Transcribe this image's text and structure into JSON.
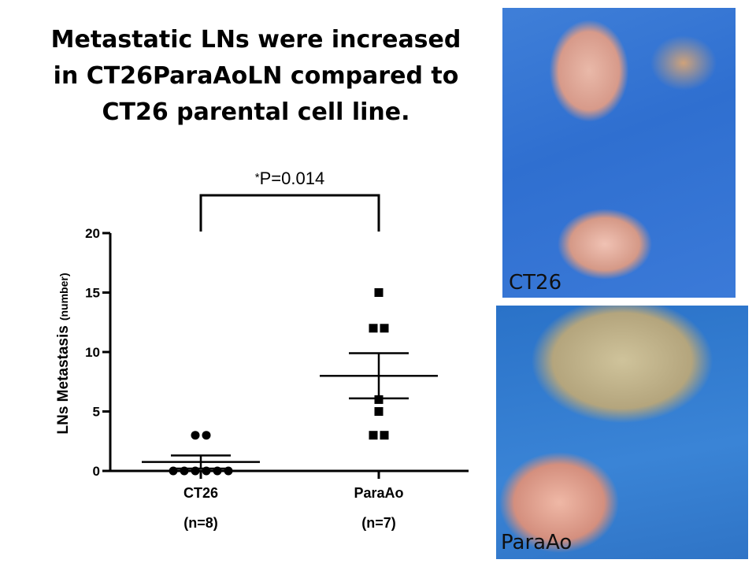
{
  "slide": {
    "title_lines": [
      "Metastatic LNs were increased",
      "in CT26ParaAoLN compared to",
      "CT26 parental cell line."
    ]
  },
  "photos": [
    {
      "label": "CT26",
      "icon": "ct26-intestine-photo"
    },
    {
      "label": "ParaAo",
      "icon": "paraao-intestine-photo"
    }
  ],
  "chart_data": {
    "type": "scatter",
    "title": "",
    "ylabel": "LNs Metastasis",
    "ylabel_unit": "(number)",
    "ylim": [
      0,
      20
    ],
    "yticks": [
      0,
      5,
      10,
      15,
      20
    ],
    "grid": false,
    "categories": [
      "CT26",
      "ParaAo"
    ],
    "category_sublabels": [
      "(n=8)",
      "(n=7)"
    ],
    "series": [
      {
        "values": [
          0,
          0,
          0,
          0,
          0,
          0,
          3,
          3
        ],
        "marker": "circle",
        "mean": 0.75,
        "sem_upper": 1.3,
        "sem_lower": 0.2
      },
      {
        "values": [
          15,
          12,
          12,
          6,
          5,
          3,
          3
        ],
        "marker": "square",
        "mean": 8.0,
        "sem_upper": 9.9,
        "sem_lower": 6.1
      }
    ],
    "significance": {
      "star": "*",
      "text": "P=0.014"
    },
    "colors": {
      "marker": "#000000",
      "axis": "#000000"
    }
  }
}
